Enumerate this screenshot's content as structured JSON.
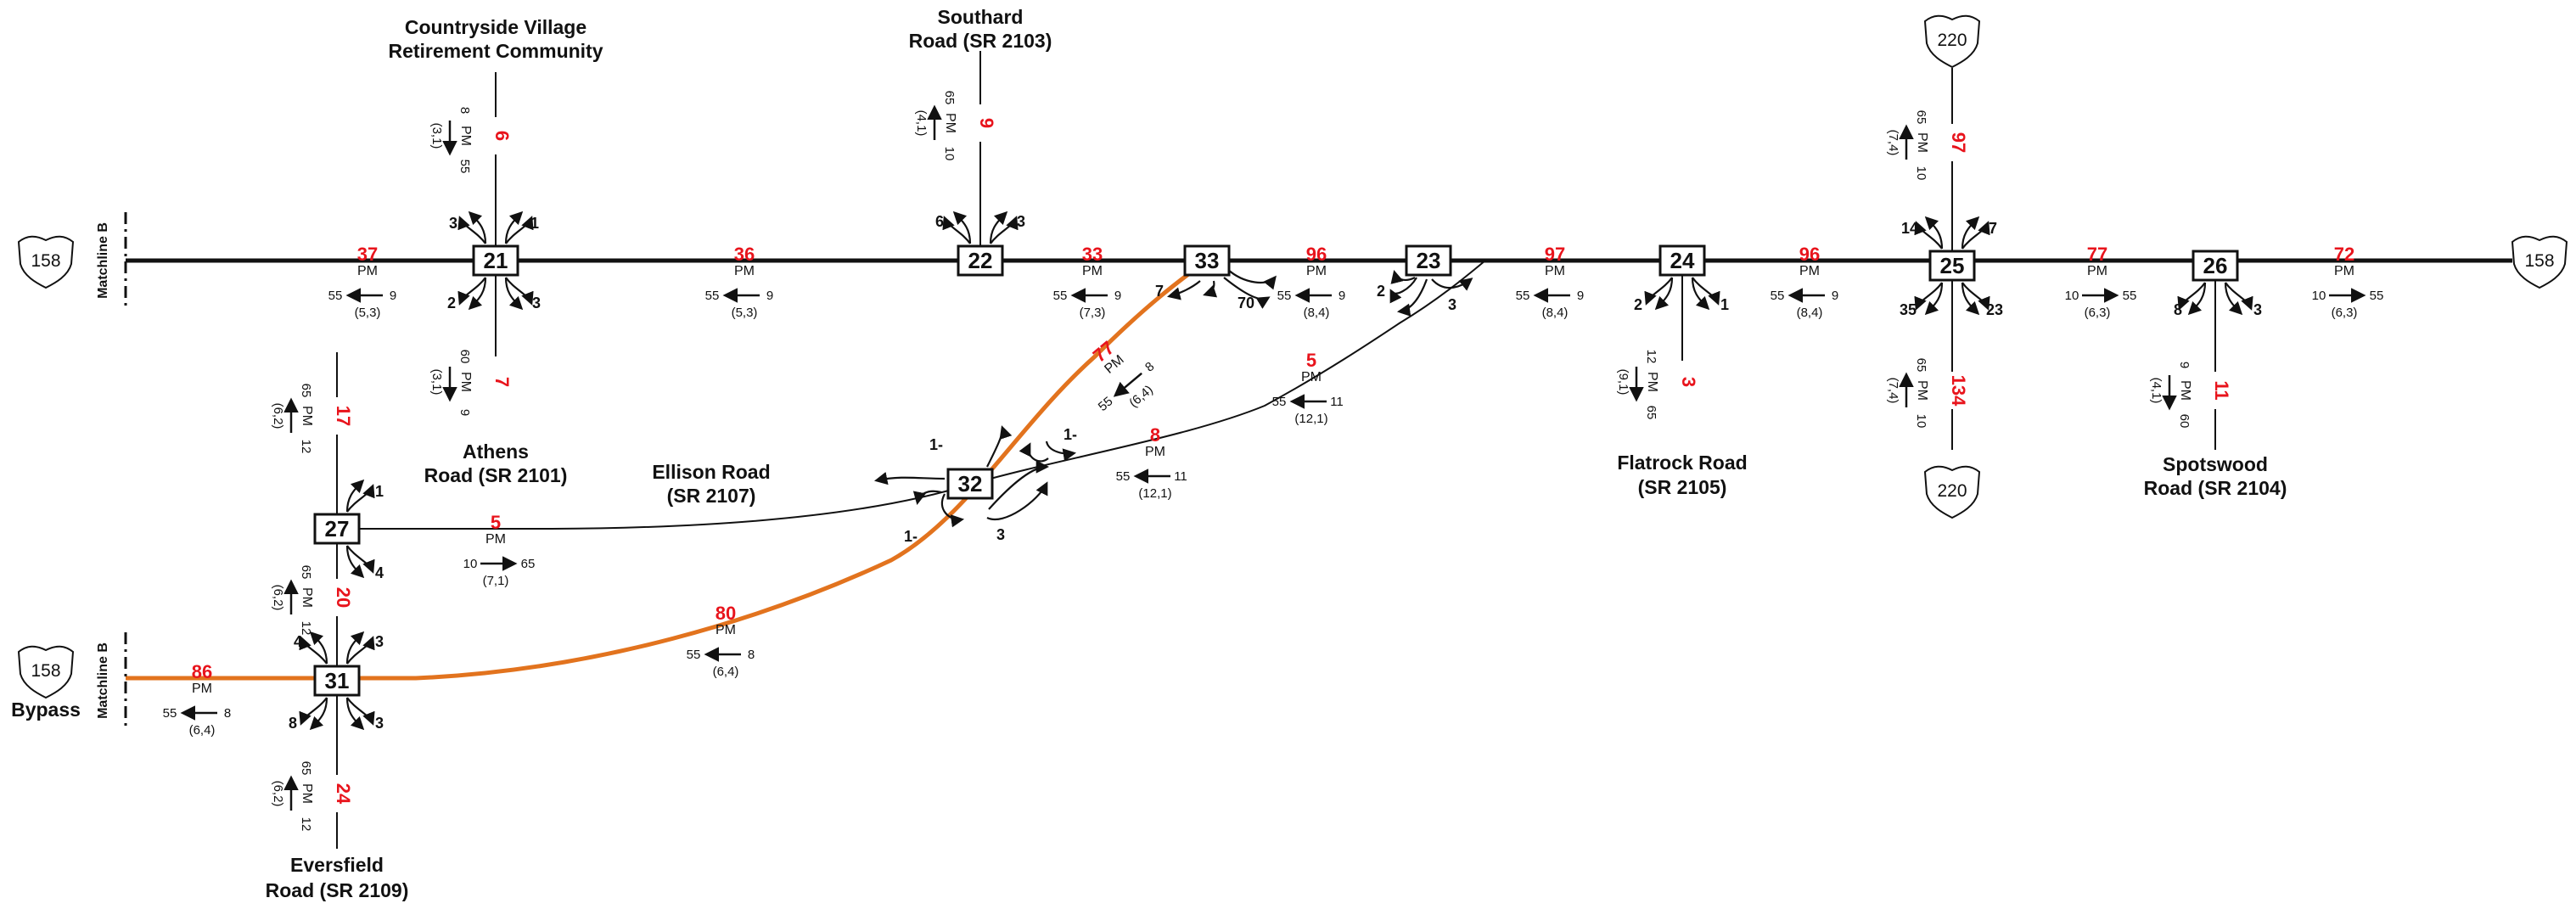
{
  "colors": {
    "road": "#111111",
    "bypass": "#e2731e",
    "volume": "#e8141c"
  },
  "shields": {
    "s158_west": "158",
    "s158_east": "158",
    "s158_bypass": "158",
    "s220_north": "220",
    "s220_south": "220"
  },
  "matchline_top": "Matchline B",
  "matchline_bottom": "Matchline B",
  "labels": {
    "bypass": "Bypass",
    "countryside": [
      "Countryside Village",
      "Retirement Community"
    ],
    "southard": [
      "Southard",
      "Road (SR 2103)"
    ],
    "athens": [
      "Athens",
      "Road (SR 2101)"
    ],
    "ellison": [
      "Ellison Road",
      "(SR 2107)"
    ],
    "flatrock": [
      "Flatrock Road",
      "(SR 2105)"
    ],
    "spotswood": [
      "Spotswood",
      "Road (SR 2104)"
    ],
    "eversfield": [
      "Eversfield",
      "Road (SR 2109)"
    ]
  },
  "pm": "PM",
  "nodes": [
    "21",
    "22",
    "33",
    "23",
    "24",
    "25",
    "26",
    "27",
    "32",
    "31"
  ],
  "segments": {
    "w_21": {
      "vol": "37",
      "a": "55",
      "b": "9",
      "pct": "(5,3)"
    },
    "m_21_22": {
      "vol": "36",
      "a": "55",
      "b": "9",
      "pct": "(5,3)"
    },
    "m_22_33": {
      "vol": "33",
      "a": "55",
      "b": "9",
      "pct": "(7,3)"
    },
    "m_33_23": {
      "vol": "96",
      "a": "55",
      "b": "9",
      "pct": "(8,4)"
    },
    "m_23_24": {
      "vol": "97",
      "a": "55",
      "b": "9",
      "pct": "(8,4)"
    },
    "m_24_25": {
      "vol": "96",
      "a": "55",
      "b": "9",
      "pct": "(8,4)"
    },
    "m_25_26": {
      "vol": "77",
      "a": "10",
      "b": "55",
      "pct": "(6,3)"
    },
    "e_26": {
      "vol": "72",
      "a": "10",
      "b": "55",
      "pct": "(6,3)"
    },
    "n_21": {
      "vol": "6",
      "a": "8",
      "b": "55",
      "pct": "(3,1)"
    },
    "s_21": {
      "vol": "7",
      "a": "60",
      "b": "9",
      "pct": "(3,1)"
    },
    "n_22": {
      "vol": "9",
      "a": "65",
      "b": "10",
      "pct": "(4,1)"
    },
    "n_25": {
      "vol": "97",
      "a": "65",
      "b": "10",
      "pct": "(7,4)"
    },
    "s_25": {
      "vol": "134",
      "a": "65",
      "b": "10",
      "pct": "(7,4)"
    },
    "s_24": {
      "vol": "3",
      "a": "12",
      "b": "65",
      "pct": "(9,1)"
    },
    "s_26": {
      "vol": "11",
      "a": "9",
      "b": "60",
      "pct": "(4,1)"
    },
    "n_27": {
      "vol": "17",
      "a": "65",
      "b": "12",
      "pct": "(6,2)"
    },
    "m_27_31": {
      "vol": "20",
      "a": "65",
      "b": "12",
      "pct": "(6,2)"
    },
    "s_31": {
      "vol": "24",
      "a": "65",
      "b": "12",
      "pct": "(6,2)"
    },
    "e_27": {
      "vol": "5",
      "a": "10",
      "b": "65",
      "pct": "(7,1)"
    },
    "w_31": {
      "vol": "86",
      "a": "55",
      "b": "8",
      "pct": "(6,4)"
    },
    "bypass_31_32": {
      "vol": "80",
      "a": "55",
      "b": "8",
      "pct": "(6,4)"
    },
    "ramp_32_33": {
      "vol": "77",
      "a": "55",
      "b": "8",
      "pct": "(6,4)"
    },
    "ellison_32_e": {
      "vol": "8",
      "a": "55",
      "b": "11",
      "pct": "(12,1)"
    },
    "ramp_e_23": {
      "vol": "5",
      "a": "55",
      "b": "11",
      "pct": "(12,1)"
    }
  },
  "turns": {
    "t21_nw": "3",
    "t21_ne": "1",
    "t21_sw": "2",
    "t21_se": "3",
    "t22_nw": "6",
    "t22_ne": "3",
    "t33_a": "7",
    "t33_b": "70",
    "t23_a": "2",
    "t23_b": "3",
    "t24_sw": "2",
    "t24_se": "1",
    "t25_nw": "14",
    "t25_ne": "7",
    "t25_sw": "35",
    "t25_se": "23",
    "t26_sw": "8",
    "t26_se": "3",
    "t27_ne": "1",
    "t27_se": "4",
    "t31_nw": "4",
    "t31_ne": "3",
    "t31_sw": "8",
    "t31_se": "3",
    "t32_a": "1-",
    "t32_b": "1-",
    "t32_c": "1-",
    "t32_d": "3"
  }
}
